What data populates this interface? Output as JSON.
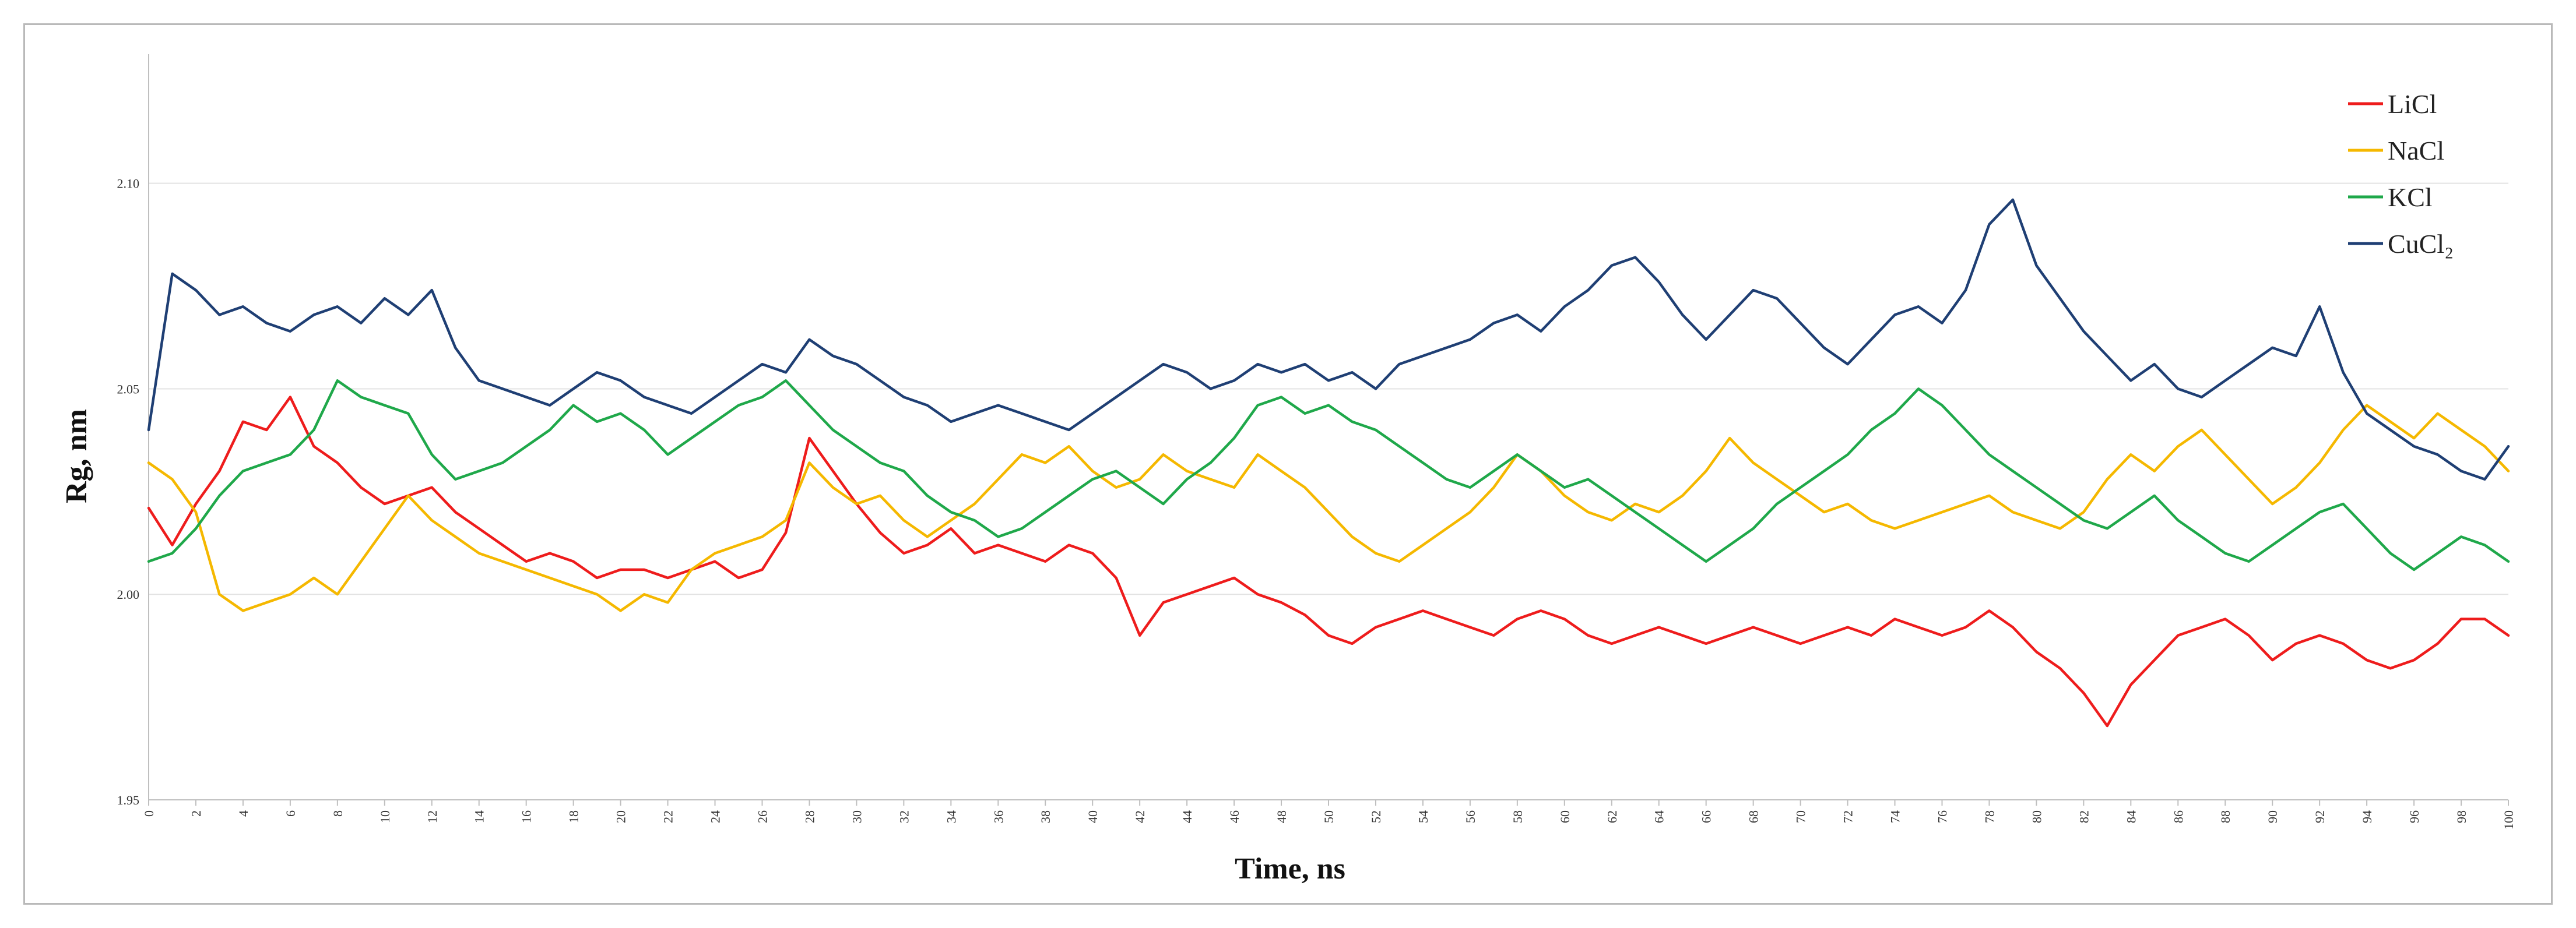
{
  "chart_data": {
    "type": "line",
    "title": "",
    "xlabel": "Time, ns",
    "ylabel": "Rg, nm",
    "xlim": [
      0,
      100
    ],
    "ylim": [
      1.95,
      2.13
    ],
    "x_ticks": [
      0,
      2,
      4,
      6,
      8,
      10,
      12,
      14,
      16,
      18,
      20,
      22,
      24,
      26,
      28,
      30,
      32,
      34,
      36,
      38,
      40,
      42,
      44,
      46,
      48,
      50,
      52,
      54,
      56,
      58,
      60,
      62,
      64,
      66,
      68,
      70,
      72,
      74,
      76,
      78,
      80,
      82,
      84,
      86,
      88,
      90,
      92,
      94,
      96,
      98,
      100
    ],
    "x_tick_labels": [
      "0",
      "2",
      "4",
      "6",
      "8",
      "10",
      "12",
      "14",
      "16",
      "18",
      "20",
      "22",
      "24",
      "26",
      "28",
      "30",
      "32",
      "34",
      "36",
      "38",
      "40",
      "42",
      "44",
      "46",
      "48",
      "50",
      "52",
      "54",
      "56",
      "58",
      "60",
      "62",
      "64",
      "66",
      "68",
      "70",
      "72",
      "74",
      "76",
      "78",
      "80",
      "82",
      "84",
      "86",
      "88",
      "90",
      "92",
      "94",
      "96",
      "98",
      "100"
    ],
    "y_ticks": [
      1.95,
      2.0,
      2.05,
      2.1
    ],
    "y_tick_labels": [
      "1.95",
      "2.00",
      "2.05",
      "2.10"
    ],
    "grid": "horizontal",
    "legend_position": "top-right",
    "x": [
      0,
      1,
      2,
      3,
      4,
      5,
      6,
      7,
      8,
      9,
      10,
      11,
      12,
      13,
      14,
      15,
      16,
      17,
      18,
      19,
      20,
      21,
      22,
      23,
      24,
      25,
      26,
      27,
      28,
      29,
      30,
      31,
      32,
      33,
      34,
      35,
      36,
      37,
      38,
      39,
      40,
      41,
      42,
      43,
      44,
      45,
      46,
      47,
      48,
      49,
      50,
      51,
      52,
      53,
      54,
      55,
      56,
      57,
      58,
      59,
      60,
      61,
      62,
      63,
      64,
      65,
      66,
      67,
      68,
      69,
      70,
      71,
      72,
      73,
      74,
      75,
      76,
      77,
      78,
      79,
      80,
      81,
      82,
      83,
      84,
      85,
      86,
      87,
      88,
      89,
      90,
      91,
      92,
      93,
      94,
      95,
      96,
      97,
      98,
      99,
      100
    ],
    "series": [
      {
        "name": "LiCl",
        "color": "#ee1c1c",
        "values": [
          2.021,
          2.012,
          2.022,
          2.03,
          2.042,
          2.04,
          2.048,
          2.036,
          2.032,
          2.026,
          2.022,
          2.024,
          2.026,
          2.02,
          2.016,
          2.012,
          2.008,
          2.01,
          2.008,
          2.004,
          2.006,
          2.006,
          2.004,
          2.006,
          2.008,
          2.004,
          2.006,
          2.015,
          2.038,
          2.03,
          2.022,
          2.015,
          2.01,
          2.012,
          2.016,
          2.01,
          2.012,
          2.01,
          2.008,
          2.012,
          2.01,
          2.004,
          1.99,
          1.998,
          2.0,
          2.002,
          2.004,
          2.0,
          1.998,
          1.995,
          1.99,
          1.988,
          1.992,
          1.994,
          1.996,
          1.994,
          1.992,
          1.99,
          1.994,
          1.996,
          1.994,
          1.99,
          1.988,
          1.99,
          1.992,
          1.99,
          1.988,
          1.99,
          1.992,
          1.99,
          1.988,
          1.99,
          1.992,
          1.99,
          1.994,
          1.992,
          1.99,
          1.992,
          1.996,
          1.992,
          1.986,
          1.982,
          1.976,
          1.968,
          1.978,
          1.984,
          1.99,
          1.992,
          1.994,
          1.99,
          1.984,
          1.988,
          1.99,
          1.988,
          1.984,
          1.982,
          1.984,
          1.988,
          1.994,
          1.994,
          1.99
        ]
      },
      {
        "name": "NaCl",
        "color": "#f5b800",
        "values": [
          2.032,
          2.028,
          2.02,
          2.0,
          1.996,
          1.998,
          2.0,
          2.004,
          2.0,
          2.008,
          2.016,
          2.024,
          2.018,
          2.014,
          2.01,
          2.008,
          2.006,
          2.004,
          2.002,
          2.0,
          1.996,
          2.0,
          1.998,
          2.006,
          2.01,
          2.012,
          2.014,
          2.018,
          2.032,
          2.026,
          2.022,
          2.024,
          2.018,
          2.014,
          2.018,
          2.022,
          2.028,
          2.034,
          2.032,
          2.036,
          2.03,
          2.026,
          2.028,
          2.034,
          2.03,
          2.028,
          2.026,
          2.034,
          2.03,
          2.026,
          2.02,
          2.014,
          2.01,
          2.008,
          2.012,
          2.016,
          2.02,
          2.026,
          2.034,
          2.03,
          2.024,
          2.02,
          2.018,
          2.022,
          2.02,
          2.024,
          2.03,
          2.038,
          2.032,
          2.028,
          2.024,
          2.02,
          2.022,
          2.018,
          2.016,
          2.018,
          2.02,
          2.022,
          2.024,
          2.02,
          2.018,
          2.016,
          2.02,
          2.028,
          2.034,
          2.03,
          2.036,
          2.04,
          2.034,
          2.028,
          2.022,
          2.026,
          2.032,
          2.04,
          2.046,
          2.042,
          2.038,
          2.044,
          2.04,
          2.036,
          2.03
        ]
      },
      {
        "name": "KCl",
        "color": "#1fa84a",
        "values": [
          2.008,
          2.01,
          2.016,
          2.024,
          2.03,
          2.032,
          2.034,
          2.04,
          2.052,
          2.048,
          2.046,
          2.044,
          2.034,
          2.028,
          2.03,
          2.032,
          2.036,
          2.04,
          2.046,
          2.042,
          2.044,
          2.04,
          2.034,
          2.038,
          2.042,
          2.046,
          2.048,
          2.052,
          2.046,
          2.04,
          2.036,
          2.032,
          2.03,
          2.024,
          2.02,
          2.018,
          2.014,
          2.016,
          2.02,
          2.024,
          2.028,
          2.03,
          2.026,
          2.022,
          2.028,
          2.032,
          2.038,
          2.046,
          2.048,
          2.044,
          2.046,
          2.042,
          2.04,
          2.036,
          2.032,
          2.028,
          2.026,
          2.03,
          2.034,
          2.03,
          2.026,
          2.028,
          2.024,
          2.02,
          2.016,
          2.012,
          2.008,
          2.012,
          2.016,
          2.022,
          2.026,
          2.03,
          2.034,
          2.04,
          2.044,
          2.05,
          2.046,
          2.04,
          2.034,
          2.03,
          2.026,
          2.022,
          2.018,
          2.016,
          2.02,
          2.024,
          2.018,
          2.014,
          2.01,
          2.008,
          2.012,
          2.016,
          2.02,
          2.022,
          2.016,
          2.01,
          2.006,
          2.01,
          2.014,
          2.012,
          2.008
        ]
      },
      {
        "name": "CuCl₂",
        "color": "#1f3f74",
        "values": [
          2.04,
          2.078,
          2.074,
          2.068,
          2.07,
          2.066,
          2.064,
          2.068,
          2.07,
          2.066,
          2.072,
          2.068,
          2.074,
          2.06,
          2.052,
          2.05,
          2.048,
          2.046,
          2.05,
          2.054,
          2.052,
          2.048,
          2.046,
          2.044,
          2.048,
          2.052,
          2.056,
          2.054,
          2.062,
          2.058,
          2.056,
          2.052,
          2.048,
          2.046,
          2.042,
          2.044,
          2.046,
          2.044,
          2.042,
          2.04,
          2.044,
          2.048,
          2.052,
          2.056,
          2.054,
          2.05,
          2.052,
          2.056,
          2.054,
          2.056,
          2.052,
          2.054,
          2.05,
          2.056,
          2.058,
          2.06,
          2.062,
          2.066,
          2.068,
          2.064,
          2.07,
          2.074,
          2.08,
          2.082,
          2.076,
          2.068,
          2.062,
          2.068,
          2.074,
          2.072,
          2.066,
          2.06,
          2.056,
          2.062,
          2.068,
          2.07,
          2.066,
          2.074,
          2.09,
          2.096,
          2.08,
          2.072,
          2.064,
          2.058,
          2.052,
          2.056,
          2.05,
          2.048,
          2.052,
          2.056,
          2.06,
          2.058,
          2.07,
          2.054,
          2.044,
          2.04,
          2.036,
          2.034,
          2.03,
          2.028,
          2.036
        ]
      }
    ]
  }
}
